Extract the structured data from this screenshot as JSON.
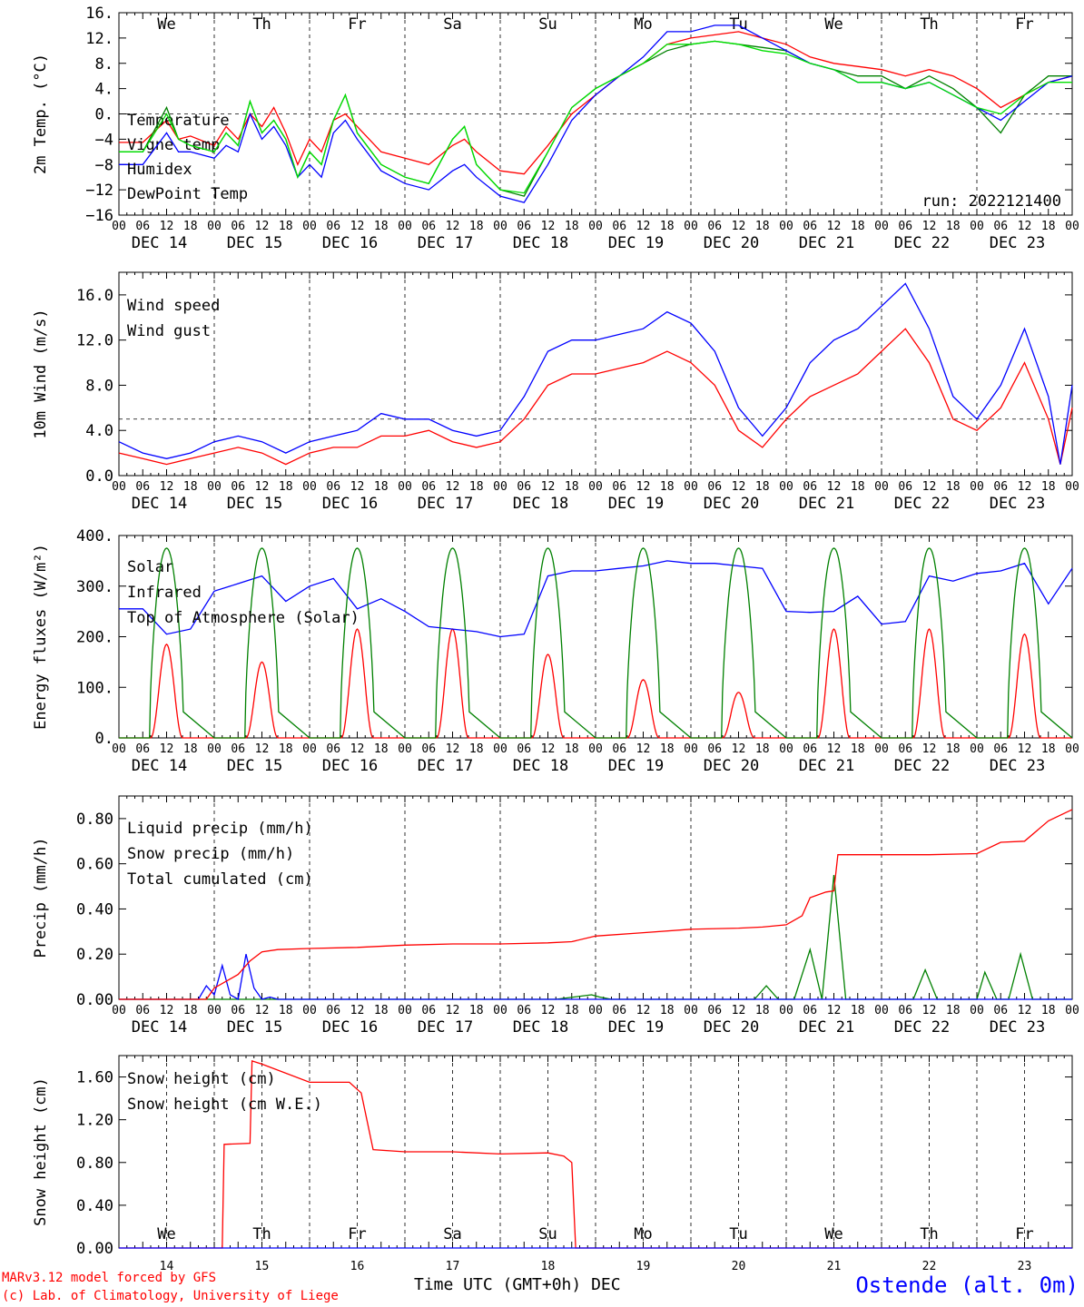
{
  "run_label": "run: 2022121400",
  "x_axis_title": "Time UTC (GMT+0h)",
  "x_axis_month": "DEC",
  "station_label": "Ostende (alt. 0m)",
  "credits": [
    "MARv3.12 model forced by GFS",
    "(c) Lab. of Climatology, University of Liege"
  ],
  "colors": {
    "red": "#ff0000",
    "green": "#008000",
    "blue": "#0000ff",
    "lightgreen": "#00e000"
  },
  "days": [
    {
      "abbr": "We",
      "date": "DEC 14",
      "num": "14",
      "color": "#000000"
    },
    {
      "abbr": "Th",
      "date": "DEC 15",
      "num": "15",
      "color": "#000000"
    },
    {
      "abbr": "Fr",
      "date": "DEC 16",
      "num": "16",
      "color": "#000000"
    },
    {
      "abbr": "Sa",
      "date": "DEC 17",
      "num": "17",
      "color": "#ff0000"
    },
    {
      "abbr": "Su",
      "date": "DEC 18",
      "num": "18",
      "color": "#ff0000"
    },
    {
      "abbr": "Mo",
      "date": "DEC 19",
      "num": "19",
      "color": "#000000"
    },
    {
      "abbr": "Tu",
      "date": "DEC 20",
      "num": "20",
      "color": "#000000"
    },
    {
      "abbr": "We",
      "date": "DEC 21",
      "num": "21",
      "color": "#000000"
    },
    {
      "abbr": "Th",
      "date": "DEC 22",
      "num": "22",
      "color": "#000000"
    },
    {
      "abbr": "Fr",
      "date": "DEC 23",
      "num": "23",
      "color": "#000000"
    }
  ],
  "hour_labels": [
    "00",
    "06",
    "12",
    "18"
  ],
  "chart_data": [
    {
      "id": "temp",
      "type": "line",
      "ylabel": "2m Temp. (°C)",
      "ylim": [
        -16,
        16
      ],
      "yticks": [
        "16.",
        "12.",
        "8.",
        "4.",
        "0.",
        "−4",
        "−8",
        "−12",
        "−16"
      ],
      "ytick_values": [
        16,
        12,
        8,
        4,
        0,
        -4,
        -8,
        -12,
        -16
      ],
      "ref_line": 0,
      "x_unit": "hours since DEC 14 00 UTC",
      "series": [
        {
          "name": "Temperature",
          "color": "#ff0000",
          "x": [
            0,
            6,
            12,
            15,
            18,
            24,
            27,
            30,
            33,
            36,
            39,
            42,
            45,
            48,
            51,
            54,
            57,
            60,
            66,
            72,
            78,
            84,
            87,
            90,
            96,
            102,
            108,
            114,
            120,
            126,
            132,
            138,
            144,
            150,
            156,
            162,
            168,
            174,
            180,
            186,
            192,
            198,
            204,
            210,
            216,
            222,
            228,
            234,
            240
          ],
          "y": [
            -4.5,
            -4.5,
            -1,
            -4,
            -3.5,
            -5,
            -2,
            -4,
            0,
            -2,
            1,
            -3,
            -8,
            -4,
            -6,
            -1,
            0,
            -2,
            -6,
            -7,
            -8,
            -5,
            -4,
            -6,
            -9,
            -9.5,
            -5,
            0,
            3,
            6,
            8,
            11,
            12,
            12.5,
            13,
            12,
            11,
            9,
            8,
            7.5,
            7,
            6,
            7,
            6,
            4,
            1,
            3,
            5,
            6
          ]
        },
        {
          "name": "Vigne temp",
          "color": "#008000",
          "x": [
            0,
            6,
            12,
            15,
            18,
            24,
            27,
            30,
            33,
            36,
            39,
            42,
            45,
            48,
            51,
            54,
            57,
            60,
            66,
            72,
            78,
            84,
            87,
            90,
            96,
            102,
            108,
            114,
            120,
            126,
            132,
            138,
            144,
            150,
            156,
            162,
            168,
            174,
            180,
            186,
            192,
            198,
            204,
            210,
            216,
            222,
            228,
            234,
            240
          ],
          "y": [
            -6,
            -6,
            1,
            -4,
            -5,
            -6,
            -3,
            -5,
            2,
            -3,
            -1,
            -4,
            -10,
            -6,
            -8,
            -1,
            3,
            -3,
            -8,
            -10,
            -11,
            -4,
            -2,
            -8,
            -12,
            -13,
            -6,
            1,
            4,
            6,
            8,
            10,
            11,
            11.5,
            11,
            10.5,
            10,
            8,
            7,
            6,
            6,
            4,
            6,
            4,
            1,
            -3,
            3,
            6,
            6
          ]
        },
        {
          "name": "Humidex",
          "color": "#0000ff",
          "x": [
            0,
            6,
            12,
            15,
            18,
            24,
            27,
            30,
            33,
            36,
            39,
            42,
            45,
            48,
            51,
            54,
            57,
            60,
            66,
            72,
            78,
            84,
            87,
            90,
            96,
            102,
            108,
            114,
            120,
            126,
            132,
            138,
            144,
            150,
            156,
            162,
            168,
            174,
            180,
            186,
            192,
            198,
            204,
            210,
            216,
            222,
            228,
            234,
            240
          ],
          "y": [
            -8,
            -8,
            -3,
            -6,
            -6,
            -7,
            -5,
            -6,
            0,
            -4,
            -2,
            -5,
            -10,
            -8,
            -10,
            -3,
            -1,
            -4,
            -9,
            -11,
            -12,
            -9,
            -8,
            -10,
            -13,
            -14,
            -8,
            -1,
            3,
            6,
            9,
            13,
            13,
            14,
            14,
            12,
            10,
            8,
            7,
            5,
            5,
            4,
            5,
            3,
            1,
            -1,
            2,
            5,
            6
          ]
        },
        {
          "name": "DewPoint Temp",
          "color": "#00e000",
          "x": [
            0,
            6,
            12,
            15,
            18,
            24,
            27,
            30,
            33,
            36,
            39,
            42,
            45,
            48,
            51,
            54,
            57,
            60,
            66,
            72,
            78,
            84,
            87,
            90,
            96,
            102,
            108,
            114,
            120,
            126,
            132,
            138,
            144,
            150,
            156,
            162,
            168,
            174,
            180,
            186,
            192,
            198,
            204,
            210,
            216,
            222,
            228,
            234,
            240
          ],
          "y": [
            -6,
            -6,
            0,
            -4,
            -5,
            -6,
            -3,
            -5,
            2,
            -3,
            -1,
            -4,
            -10,
            -6,
            -8,
            -1,
            3,
            -3,
            -8,
            -10,
            -11,
            -4,
            -2,
            -8,
            -12,
            -12.5,
            -6,
            1,
            4,
            6,
            8,
            11,
            11,
            11.5,
            11,
            10,
            9.5,
            8,
            7,
            5,
            5,
            4,
            5,
            3,
            1,
            0,
            3,
            5,
            5
          ]
        }
      ]
    },
    {
      "id": "wind",
      "type": "line",
      "ylabel": "10m Wind (m/s)",
      "ylim": [
        0,
        18
      ],
      "yticks": [
        "16.0",
        "12.0",
        "8.0",
        "4.0",
        "0.0"
      ],
      "ytick_values": [
        16,
        12,
        8,
        4,
        0
      ],
      "ref_line": 5,
      "x_unit": "hours since DEC 14 00 UTC",
      "series": [
        {
          "name": "Wind speed",
          "color": "#ff0000",
          "x": [
            0,
            6,
            12,
            18,
            24,
            30,
            36,
            42,
            48,
            54,
            60,
            66,
            72,
            78,
            84,
            90,
            96,
            102,
            108,
            114,
            120,
            126,
            132,
            138,
            144,
            150,
            156,
            162,
            168,
            174,
            180,
            186,
            192,
            198,
            204,
            210,
            216,
            222,
            228,
            234,
            237,
            240
          ],
          "y": [
            2,
            1.5,
            1,
            1.5,
            2,
            2.5,
            2,
            1,
            2,
            2.5,
            2.5,
            3.5,
            3.5,
            4,
            3,
            2.5,
            3,
            5,
            8,
            9,
            9,
            9.5,
            10,
            11,
            10,
            8,
            4,
            2.5,
            5,
            7,
            8,
            9,
            11,
            13,
            10,
            5,
            4,
            6,
            10,
            5,
            1,
            6
          ]
        },
        {
          "name": "Wind gust",
          "color": "#0000ff",
          "x": [
            0,
            6,
            12,
            18,
            24,
            30,
            36,
            42,
            48,
            54,
            60,
            66,
            72,
            78,
            84,
            90,
            96,
            102,
            108,
            114,
            120,
            126,
            132,
            138,
            144,
            150,
            156,
            162,
            168,
            174,
            180,
            186,
            192,
            198,
            204,
            210,
            216,
            222,
            228,
            234,
            237,
            240
          ],
          "y": [
            3,
            2,
            1.5,
            2,
            3,
            3.5,
            3,
            2,
            3,
            3.5,
            4,
            5.5,
            5,
            5,
            4,
            3.5,
            4,
            7,
            11,
            12,
            12,
            12.5,
            13,
            14.5,
            13.5,
            11,
            6,
            3.5,
            6,
            10,
            12,
            13,
            15,
            17,
            13,
            7,
            5,
            8,
            13,
            7,
            1,
            8
          ]
        }
      ]
    },
    {
      "id": "flux",
      "type": "line",
      "ylabel": "Energy fluxes (W/m²)",
      "ylim": [
        0,
        400
      ],
      "yticks": [
        "400.",
        "300.",
        "200.",
        "100.",
        "0."
      ],
      "ytick_values": [
        400,
        300,
        200,
        100,
        0
      ],
      "x_unit": "hours since DEC 14 00 UTC",
      "series": [
        {
          "name": "Solar",
          "color": "#ff0000",
          "peaks_hour_of_day": 12,
          "daily_peak": [
            185,
            150,
            215,
            215,
            165,
            115,
            90,
            215,
            215,
            205
          ]
        },
        {
          "name": "Infrared",
          "color": "#0000ff",
          "x": [
            0,
            6,
            12,
            18,
            24,
            30,
            36,
            42,
            48,
            54,
            60,
            66,
            72,
            78,
            84,
            90,
            96,
            102,
            108,
            114,
            120,
            126,
            132,
            138,
            144,
            150,
            156,
            162,
            168,
            174,
            180,
            186,
            192,
            198,
            204,
            210,
            216,
            222,
            228,
            234,
            240
          ],
          "y": [
            255,
            255,
            205,
            215,
            290,
            305,
            320,
            270,
            300,
            315,
            255,
            275,
            250,
            220,
            215,
            210,
            200,
            205,
            320,
            330,
            330,
            335,
            340,
            350,
            345,
            345,
            340,
            335,
            250,
            248,
            250,
            280,
            225,
            230,
            320,
            310,
            325,
            330,
            345,
            265,
            335
          ]
        },
        {
          "name": "Top of Atmosphere (Solar)",
          "color": "#008000",
          "peaks_hour_of_day": 12,
          "daily_peak": [
            375,
            375,
            375,
            375,
            375,
            375,
            375,
            375,
            375,
            375
          ]
        }
      ]
    },
    {
      "id": "precip",
      "type": "line",
      "ylabel": "Precip (mm/h)",
      "ylim": [
        0,
        0.9
      ],
      "yticks": [
        "0.80",
        "0.60",
        "0.40",
        "0.20",
        "0.00"
      ],
      "ytick_values": [
        0.8,
        0.6,
        0.4,
        0.2,
        0
      ],
      "x_unit": "hours since DEC 14 00 UTC",
      "series": [
        {
          "name": "Liquid precip (mm/h)",
          "color": "#008000",
          "x": [
            0,
            110,
            119,
            121,
            124,
            160,
            163,
            166,
            170,
            174,
            177,
            180,
            183,
            190,
            200,
            203,
            206,
            210,
            216,
            218,
            221,
            224,
            227,
            230,
            240
          ],
          "y": [
            0,
            0,
            0.02,
            0.01,
            0,
            0,
            0.06,
            0,
            0,
            0.22,
            0,
            0.55,
            0,
            0,
            0,
            0.13,
            0,
            0,
            0,
            0.12,
            0,
            0,
            0.2,
            0,
            0
          ]
        },
        {
          "name": "Snow precip (mm/h)",
          "color": "#0000ff",
          "x": [
            0,
            20,
            22,
            24,
            26,
            28,
            30,
            32,
            34,
            36,
            38,
            40,
            60,
            240
          ],
          "y": [
            0,
            0,
            0.06,
            0.02,
            0.15,
            0.02,
            0,
            0.2,
            0.05,
            0,
            0.01,
            0,
            0,
            0
          ]
        },
        {
          "name": "Total cumulated (cm)",
          "color": "#ff0000",
          "x": [
            0,
            22,
            24,
            30,
            33,
            36,
            40,
            48,
            60,
            72,
            84,
            96,
            108,
            114,
            120,
            132,
            144,
            156,
            162,
            168,
            172,
            174,
            178,
            180,
            181,
            190,
            200,
            204,
            216,
            222,
            228,
            234,
            240
          ],
          "y": [
            0,
            0,
            0.05,
            0.11,
            0.17,
            0.21,
            0.22,
            0.225,
            0.23,
            0.24,
            0.245,
            0.245,
            0.25,
            0.255,
            0.28,
            0.295,
            0.31,
            0.315,
            0.32,
            0.33,
            0.37,
            0.45,
            0.475,
            0.48,
            0.64,
            0.64,
            0.64,
            0.64,
            0.645,
            0.695,
            0.7,
            0.79,
            0.84
          ]
        }
      ]
    },
    {
      "id": "snow",
      "type": "line",
      "ylabel": "Snow height (cm)",
      "ylim": [
        0,
        1.8
      ],
      "yticks": [
        "1.60",
        "1.20",
        "0.80",
        "0.40",
        "0.00"
      ],
      "ytick_values": [
        1.6,
        1.2,
        0.8,
        0.4,
        0
      ],
      "x_unit": "hours since DEC 14 00 UTC",
      "series": [
        {
          "name": "Snow height (cm)",
          "color": "#ff0000",
          "x": [
            0,
            26,
            26.5,
            33,
            33.5,
            36,
            48,
            58,
            61,
            64,
            72,
            84,
            96,
            108,
            112,
            114,
            115,
            240
          ],
          "y": [
            0,
            0,
            0.97,
            0.98,
            1.75,
            1.72,
            1.55,
            1.55,
            1.45,
            0.92,
            0.9,
            0.9,
            0.88,
            0.89,
            0.86,
            0.8,
            0,
            0
          ]
        },
        {
          "name": "Snow height (cm W.E.)",
          "color": "#0000ff",
          "x": [
            0,
            240
          ],
          "y": [
            0,
            0
          ]
        }
      ]
    }
  ]
}
